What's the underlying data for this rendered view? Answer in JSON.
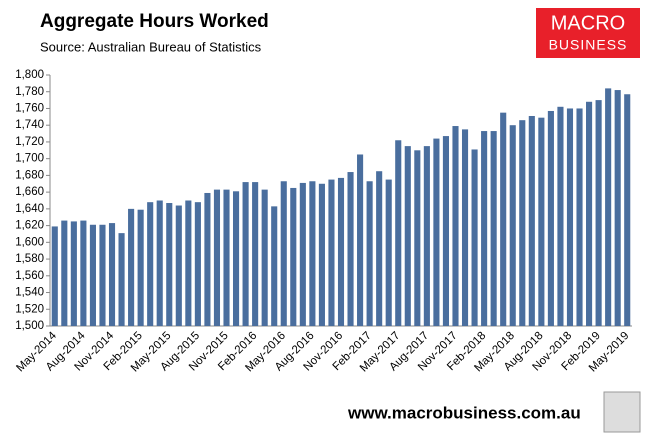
{
  "chart_data": {
    "type": "bar",
    "title": "Aggregate Hours Worked",
    "subtitle": "Source: Australian Bureau of Statistics",
    "categories": [
      "May-2014",
      null,
      null,
      "Aug-2014",
      null,
      null,
      "Nov-2014",
      null,
      null,
      "Feb-2015",
      null,
      null,
      "May-2015",
      null,
      null,
      "Aug-2015",
      null,
      null,
      "Nov-2015",
      null,
      null,
      "Feb-2016",
      null,
      null,
      "May-2016",
      null,
      null,
      "Aug-2016",
      null,
      null,
      "Nov-2016",
      null,
      null,
      "Feb-2017",
      null,
      null,
      "May-2017",
      null,
      null,
      "Aug-2017",
      null,
      null,
      "Nov-2017",
      null,
      null,
      "Feb-2018",
      null,
      null,
      "May-2018",
      null,
      null,
      "Aug-2018",
      null,
      null,
      "Nov-2018",
      null,
      null,
      "Feb-2019",
      null,
      null,
      "May-2019"
    ],
    "values": [
      1619,
      1626,
      1625,
      1626,
      1621,
      1621,
      1623,
      1611,
      1640,
      1639,
      1648,
      1650,
      1647,
      1644,
      1650,
      1648,
      1659,
      1663,
      1663,
      1661,
      1672,
      1672,
      1663,
      1643,
      1673,
      1665,
      1671,
      1673,
      1670,
      1675,
      1677,
      1684,
      1705,
      1673,
      1685,
      1675,
      1722,
      1715,
      1710,
      1715,
      1724,
      1727,
      1739,
      1735,
      1711,
      1733,
      1733,
      1755,
      1740,
      1746,
      1751,
      1749,
      1757,
      1762,
      1760,
      1760,
      1768,
      1770,
      1784,
      1782,
      1777
    ],
    "color": "#4a6e9e",
    "ylim": [
      1500,
      1800
    ],
    "yticks": [
      {
        "value": 1500,
        "label": "1,500"
      },
      {
        "value": 1520,
        "label": "1,520"
      },
      {
        "value": 1540,
        "label": "1,540"
      },
      {
        "value": 1560,
        "label": "1,560"
      },
      {
        "value": 1580,
        "label": "1,580"
      },
      {
        "value": 1600,
        "label": "1,600"
      },
      {
        "value": 1620,
        "label": "1,620"
      },
      {
        "value": 1640,
        "label": "1,640"
      },
      {
        "value": 1660,
        "label": "1,660"
      },
      {
        "value": 1680,
        "label": "1,680"
      },
      {
        "value": 1700,
        "label": "1,700"
      },
      {
        "value": 1720,
        "label": "1,720"
      },
      {
        "value": 1740,
        "label": "1,740"
      },
      {
        "value": 1760,
        "label": "1,760"
      },
      {
        "value": 1780,
        "label": "1,780"
      },
      {
        "value": 1800,
        "label": "1,800"
      }
    ],
    "grid": false
  },
  "logo": {
    "line1": "MACRO",
    "line2": "BUSINESS"
  },
  "footer": "www.macrobusiness.com.au"
}
